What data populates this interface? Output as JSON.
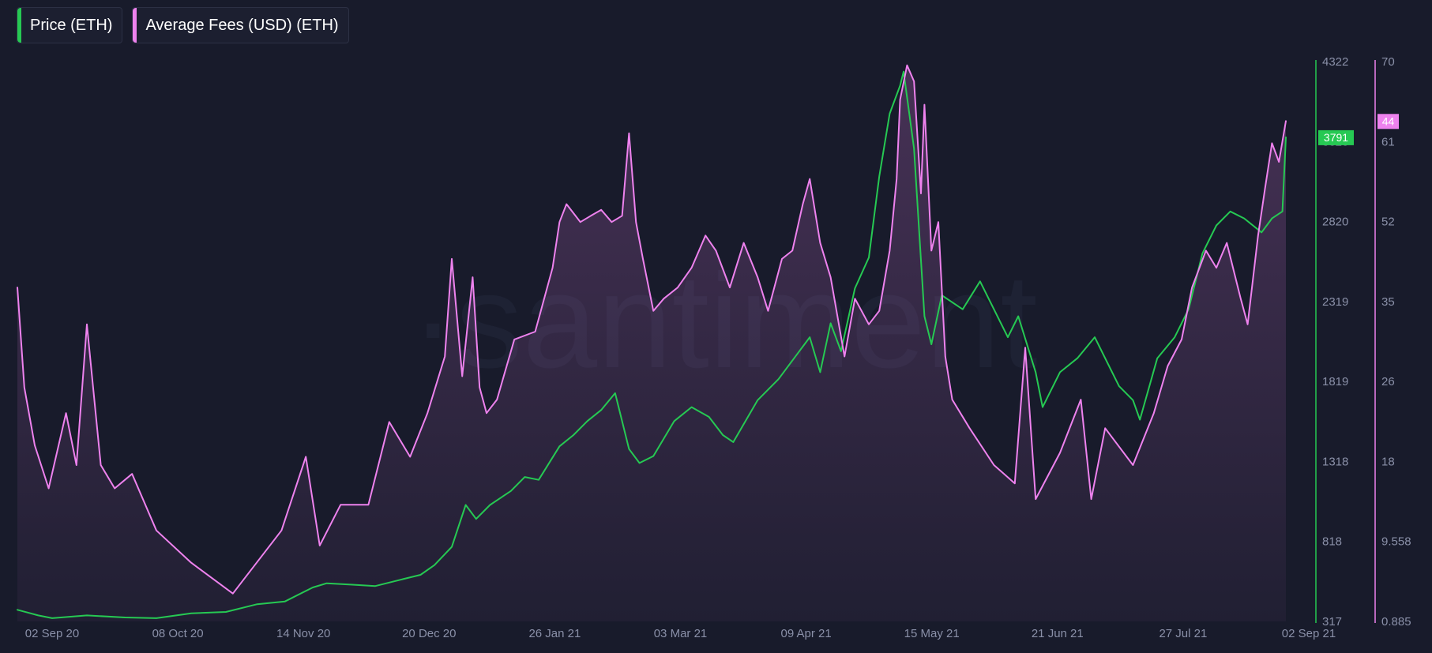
{
  "legend": {
    "items": [
      {
        "label": "Price (ETH)",
        "color": "#26c953"
      },
      {
        "label": "Average Fees (USD) (ETH)",
        "color": "#ee82ee"
      }
    ]
  },
  "watermark": "·santiment",
  "chart_data": {
    "type": "line",
    "title": "",
    "xlabel": "",
    "ylabel": "",
    "x_range": [
      "2020-08-31",
      "2021-08-31"
    ],
    "x_ticks": [
      "02 Sep 20",
      "08 Oct 20",
      "14 Nov 20",
      "20 Dec 20",
      "26 Jan 21",
      "03 Mar 21",
      "09 Apr 21",
      "15 May 21",
      "21 Jun 21",
      "27 Jul 21",
      "02 Sep 21"
    ],
    "y_axes": [
      {
        "id": "price",
        "side": "right",
        "color": "#26c953",
        "ylim": [
          317,
          4322
        ],
        "ticks": [
          "4322",
          "3320",
          "2820",
          "2319",
          "1819",
          "1318",
          "818",
          "317"
        ],
        "current_label": "3791"
      },
      {
        "id": "fees",
        "side": "right",
        "color": "#ee82ee",
        "scale": "log",
        "ylim": [
          0.885,
          70
        ],
        "ticks": [
          "70",
          "61",
          "52",
          "35",
          "26",
          "18",
          "9.558",
          "0.885"
        ],
        "current_label": "44"
      }
    ],
    "grid": false,
    "legend_position": "top-left",
    "series": [
      {
        "name": "Price (ETH)",
        "axis": "price",
        "color": "#26c953",
        "x": [
          "2020-08-31",
          "2020-09-03",
          "2020-09-06",
          "2020-09-10",
          "2020-09-20",
          "2020-10-01",
          "2020-10-10",
          "2020-10-20",
          "2020-10-30",
          "2020-11-08",
          "2020-11-16",
          "2020-11-24",
          "2020-11-28",
          "2020-12-05",
          "2020-12-12",
          "2020-12-20",
          "2020-12-25",
          "2020-12-29",
          "2021-01-03",
          "2021-01-07",
          "2021-01-10",
          "2021-01-14",
          "2021-01-20",
          "2021-01-24",
          "2021-01-28",
          "2021-02-03",
          "2021-02-07",
          "2021-02-11",
          "2021-02-15",
          "2021-02-19",
          "2021-02-23",
          "2021-02-26",
          "2021-03-02",
          "2021-03-08",
          "2021-03-13",
          "2021-03-18",
          "2021-03-22",
          "2021-03-25",
          "2021-04-01",
          "2021-04-07",
          "2021-04-13",
          "2021-04-16",
          "2021-04-19",
          "2021-04-22",
          "2021-04-25",
          "2021-04-29",
          "2021-05-03",
          "2021-05-06",
          "2021-05-09",
          "2021-05-12",
          "2021-05-13",
          "2021-05-16",
          "2021-05-19",
          "2021-05-21",
          "2021-05-24",
          "2021-05-30",
          "2021-06-04",
          "2021-06-08",
          "2021-06-12",
          "2021-06-15",
          "2021-06-20",
          "2021-06-22",
          "2021-06-27",
          "2021-07-02",
          "2021-07-07",
          "2021-07-14",
          "2021-07-18",
          "2021-07-20",
          "2021-07-25",
          "2021-07-30",
          "2021-08-03",
          "2021-08-07",
          "2021-08-11",
          "2021-08-15",
          "2021-08-19",
          "2021-08-24",
          "2021-08-27",
          "2021-08-30",
          "2021-08-31"
        ],
        "values": [
          400,
          380,
          360,
          340,
          360,
          345,
          340,
          375,
          385,
          440,
          460,
          560,
          590,
          580,
          570,
          620,
          650,
          720,
          850,
          1150,
          1050,
          1150,
          1250,
          1350,
          1330,
          1570,
          1650,
          1750,
          1830,
          1950,
          1550,
          1450,
          1500,
          1750,
          1850,
          1780,
          1650,
          1600,
          1900,
          2050,
          2250,
          2350,
          2100,
          2450,
          2250,
          2700,
          2920,
          3500,
          3950,
          4150,
          4250,
          3700,
          2500,
          2300,
          2650,
          2550,
          2750,
          2550,
          2350,
          2500,
          2100,
          1850,
          2100,
          2200,
          2350,
          2000,
          1900,
          1760,
          2200,
          2350,
          2550,
          2950,
          3150,
          3250,
          3200,
          3100,
          3200,
          3250,
          3780
        ]
      },
      {
        "name": "Average Fees (USD) (ETH)",
        "axis": "fees",
        "color": "#ee82ee",
        "x": [
          "2020-08-31",
          "2020-09-02",
          "2020-09-05",
          "2020-09-09",
          "2020-09-14",
          "2020-09-17",
          "2020-09-20",
          "2020-09-24",
          "2020-09-28",
          "2020-10-03",
          "2020-10-10",
          "2020-10-20",
          "2020-11-01",
          "2020-11-15",
          "2020-11-22",
          "2020-11-26",
          "2020-12-02",
          "2020-12-10",
          "2020-12-16",
          "2020-12-22",
          "2020-12-27",
          "2021-01-01",
          "2021-01-03",
          "2021-01-06",
          "2021-01-09",
          "2021-01-11",
          "2021-01-13",
          "2021-01-16",
          "2021-01-21",
          "2021-01-27",
          "2021-02-01",
          "2021-02-03",
          "2021-02-05",
          "2021-02-09",
          "2021-02-12",
          "2021-02-15",
          "2021-02-18",
          "2021-02-21",
          "2021-02-23",
          "2021-02-25",
          "2021-02-27",
          "2021-03-02",
          "2021-03-05",
          "2021-03-09",
          "2021-03-13",
          "2021-03-17",
          "2021-03-20",
          "2021-03-24",
          "2021-03-28",
          "2021-04-01",
          "2021-04-04",
          "2021-04-08",
          "2021-04-11",
          "2021-04-14",
          "2021-04-16",
          "2021-04-19",
          "2021-04-22",
          "2021-04-26",
          "2021-04-29",
          "2021-05-03",
          "2021-05-06",
          "2021-05-09",
          "2021-05-11",
          "2021-05-12",
          "2021-05-14",
          "2021-05-16",
          "2021-05-18",
          "2021-05-19",
          "2021-05-21",
          "2021-05-23",
          "2021-05-25",
          "2021-05-27",
          "2021-06-01",
          "2021-06-08",
          "2021-06-14",
          "2021-06-17",
          "2021-06-20",
          "2021-06-27",
          "2021-07-03",
          "2021-07-06",
          "2021-07-10",
          "2021-07-18",
          "2021-07-24",
          "2021-07-28",
          "2021-08-01",
          "2021-08-04",
          "2021-08-08",
          "2021-08-11",
          "2021-08-14",
          "2021-08-18",
          "2021-08-20",
          "2021-08-23",
          "2021-08-25",
          "2021-08-27",
          "2021-08-29",
          "2021-08-31"
        ],
        "values": [
          12,
          5.5,
          3.5,
          2.5,
          4.5,
          3,
          9,
          3,
          2.5,
          2.8,
          1.8,
          1.4,
          1.1,
          1.8,
          3.2,
          1.6,
          2.2,
          2.2,
          4.2,
          3.2,
          4.5,
          7,
          15,
          6,
          13,
          5.5,
          4.5,
          5,
          8,
          8.5,
          14,
          20,
          23,
          20,
          21,
          22,
          20,
          21,
          40,
          20,
          15,
          10,
          11,
          12,
          14,
          18,
          16,
          12,
          17,
          13,
          10,
          15,
          16,
          23,
          28,
          17,
          13,
          7,
          11,
          9,
          10,
          16,
          28,
          52,
          68,
          60,
          25,
          50,
          16,
          20,
          7,
          5,
          4,
          3,
          2.6,
          7.5,
          2.3,
          3.3,
          5,
          2.3,
          4,
          3,
          4.5,
          6.5,
          8,
          12,
          16,
          14,
          17,
          11,
          9,
          18,
          26,
          37,
          32,
          44
        ]
      }
    ]
  }
}
